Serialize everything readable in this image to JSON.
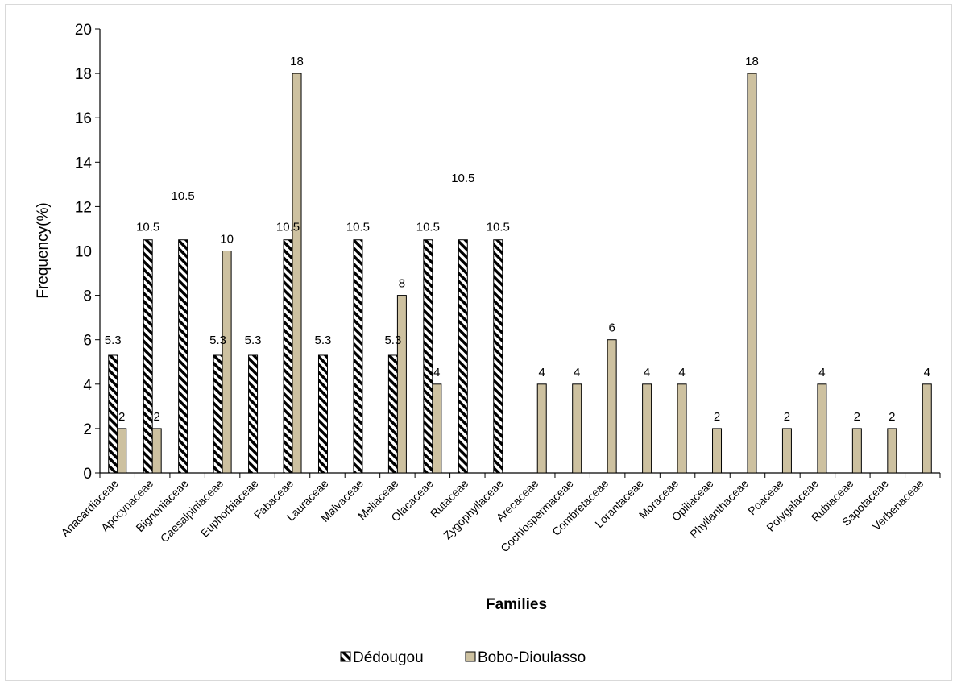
{
  "chart_data": {
    "type": "bar",
    "xlabel": "Families",
    "ylabel": "Frequency(%)",
    "ylim": [
      0,
      20
    ],
    "yticks": [
      0,
      2,
      4,
      6,
      8,
      10,
      12,
      14,
      16,
      18,
      20
    ],
    "categories": [
      "Anacardiaceae",
      "Apocynaceae",
      "Bignoniaceae",
      "Caesalpiniaceae",
      "Euphorbiaceae",
      "Fabaceae",
      "Lauraceae",
      "Malvaceae",
      "Meliaceae",
      "Olacaceae",
      "Rutaceae",
      "Zygophyllaceae",
      "Arecaceae",
      "Cochlospermaceae",
      "Combretaceae",
      "Lorantaceae",
      "Moraceae",
      "Opiliaceae",
      "Phyllanthaceae",
      "Poaceae",
      "Polygalaceae",
      "Rubiaceae",
      "Sapotaceae",
      "Verbenaceae"
    ],
    "series": [
      {
        "name": "Dédougou",
        "color": "#000000",
        "pattern": "diagonal-hatch",
        "values": [
          5.3,
          10.5,
          10.5,
          5.3,
          5.3,
          10.5,
          5.3,
          10.5,
          5.3,
          10.5,
          10.5,
          10.5,
          null,
          null,
          null,
          null,
          null,
          null,
          null,
          null,
          null,
          null,
          null,
          null
        ],
        "labels": [
          "5.3",
          "10.5",
          "10.5",
          "5.3",
          "5.3",
          "10.5",
          "5.3",
          "10.5",
          "5.3",
          "10.5",
          "10.5",
          "10.5",
          "",
          "",
          "",
          "",
          "",
          "",
          "",
          "",
          "",
          "",
          "",
          ""
        ],
        "label_values": [
          5.8,
          10.9,
          12.3,
          5.8,
          5.8,
          10.9,
          5.8,
          10.9,
          5.8,
          10.9,
          13.1,
          10.9,
          null,
          null,
          null,
          null,
          null,
          null,
          null,
          null,
          null,
          null,
          null,
          null
        ]
      },
      {
        "name": "Bobo-Dioulasso",
        "color": "#cdc1a0",
        "values": [
          2,
          2,
          null,
          10,
          null,
          18,
          null,
          null,
          8,
          4,
          null,
          null,
          4,
          4,
          6,
          4,
          4,
          2,
          18,
          2,
          4,
          2,
          2,
          4
        ],
        "labels": [
          "2",
          "2",
          "",
          "10",
          "",
          "18",
          "",
          "",
          "8",
          "4",
          "",
          "",
          "4",
          "4",
          "6",
          "4",
          "4",
          "2",
          "18",
          "2",
          "4",
          "2",
          "2",
          "4"
        ]
      }
    ],
    "legend_position": "bottom-center",
    "grid": false
  }
}
